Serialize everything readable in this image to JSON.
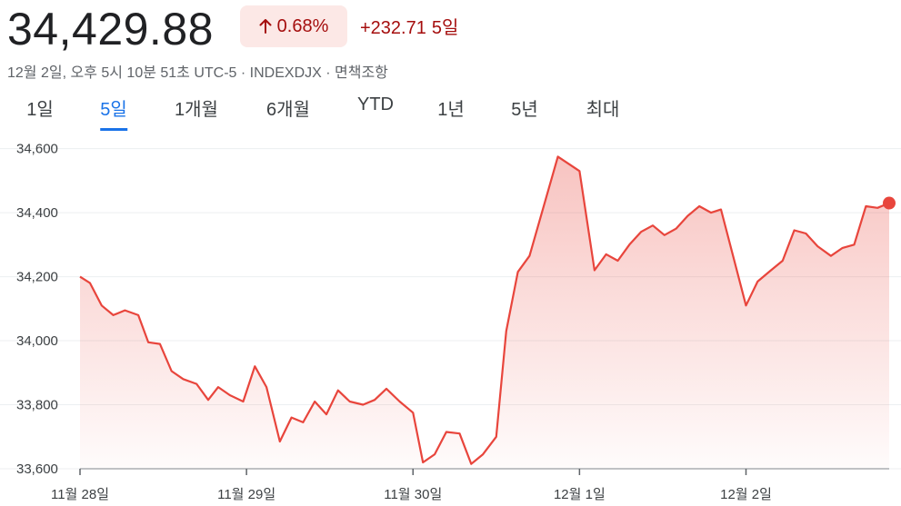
{
  "header": {
    "price": "34,429.88",
    "badge_icon": "arrow-up-icon",
    "percent_change": "0.68%",
    "abs_change": "+232.71",
    "period": "5일",
    "meta": "12월 2일, 오후 5시 10분 51초 UTC-5 · INDEXDJX · 면책조항",
    "down_color": "#a50e0e",
    "accent_color": "#1a73e8"
  },
  "tabs": [
    {
      "label": "1일"
    },
    {
      "label": "5일",
      "active": true
    },
    {
      "label": "1개월"
    },
    {
      "label": "6개월"
    },
    {
      "label": "YTD"
    },
    {
      "label": "1년"
    },
    {
      "label": "5년"
    },
    {
      "label": "최대"
    }
  ],
  "chart_data": {
    "type": "area",
    "line_color": "#e8453c",
    "ylim": [
      33600,
      34650
    ],
    "yticks": [
      {
        "value": 33600,
        "label": "33,600"
      },
      {
        "value": 33800,
        "label": "33,800"
      },
      {
        "value": 34000,
        "label": "34,000"
      },
      {
        "value": 34200,
        "label": "34,200"
      },
      {
        "value": 34400,
        "label": "34,400"
      },
      {
        "value": 34600,
        "label": "34,600"
      }
    ],
    "xticks": [
      {
        "x": 0,
        "label": "11월 28일"
      },
      {
        "x": 10,
        "label": "11월 29일"
      },
      {
        "x": 20,
        "label": "11월 30일"
      },
      {
        "x": 30,
        "label": "12월 1일"
      },
      {
        "x": 40,
        "label": "12월 2일"
      }
    ],
    "xlim": [
      0,
      48.6
    ],
    "series": [
      {
        "x": [
          0,
          0.6,
          1.3,
          2.0,
          2.7,
          3.5,
          4.1,
          4.8,
          5.5,
          6.2,
          7.0,
          7.7,
          8.3,
          9.0,
          9.8,
          10.5,
          11.2,
          12.0,
          12.7,
          13.4,
          14.1,
          14.8,
          15.5,
          16.2,
          17.0,
          17.7,
          18.4,
          19.2,
          20.0,
          20.6,
          21.3,
          22.0,
          22.8,
          23.5,
          24.2,
          25.0,
          25.6,
          26.3,
          27.0,
          28.7,
          30.0,
          30.9,
          31.6,
          32.3,
          33.0,
          33.7,
          34.4,
          35.1,
          35.8,
          36.5,
          37.2,
          37.9,
          38.5,
          40.0,
          40.7,
          41.5,
          42.2,
          42.9,
          43.6,
          44.3,
          45.1,
          45.8,
          46.5,
          47.2,
          47.9,
          48.6
        ],
        "values": [
          34200,
          34180,
          34110,
          34080,
          34095,
          34080,
          33995,
          33990,
          33905,
          33880,
          33865,
          33815,
          33855,
          33830,
          33810,
          33920,
          33855,
          33685,
          33760,
          33745,
          33810,
          33770,
          33845,
          33810,
          33800,
          33815,
          33850,
          33810,
          33775,
          33620,
          33645,
          33715,
          33710,
          33615,
          33645,
          33700,
          34030,
          34215,
          34265,
          34575,
          34530,
          34220,
          34270,
          34250,
          34300,
          34340,
          34360,
          34330,
          34350,
          34390,
          34420,
          34400,
          34410,
          34110,
          34185,
          34220,
          34250,
          34345,
          34335,
          34295,
          34265,
          34290,
          34300,
          34420,
          34415,
          34430
        ]
      }
    ]
  }
}
